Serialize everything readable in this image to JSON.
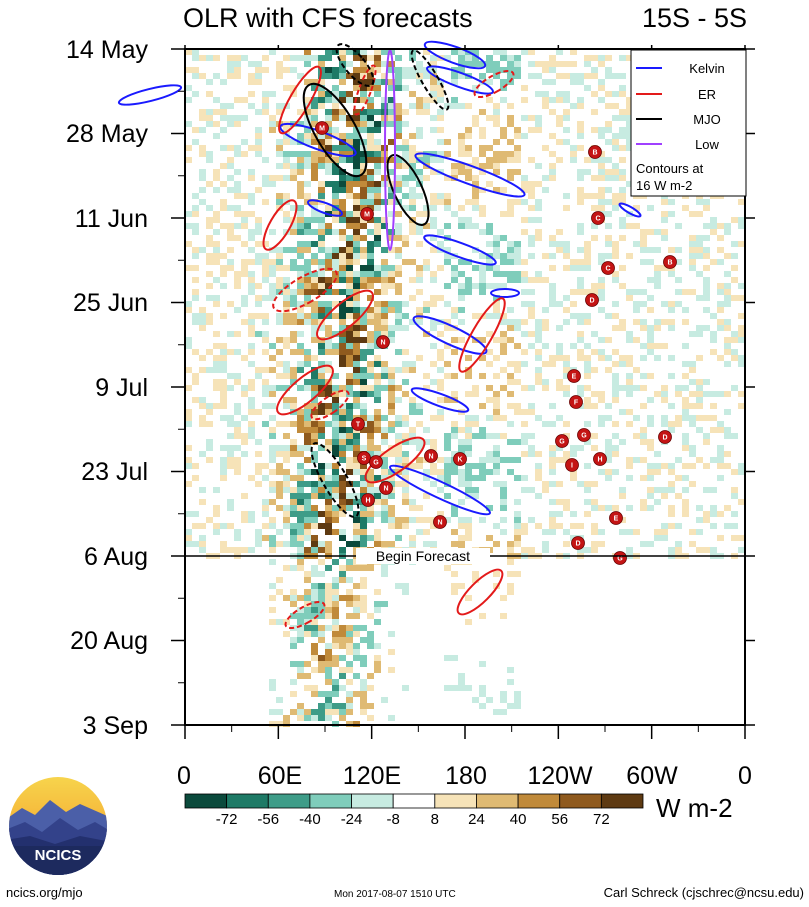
{
  "header": {
    "title": "OLR with CFS forecasts",
    "region": "15S - 5S"
  },
  "chart_data": {
    "type": "heatmap",
    "title": "OLR with CFS forecasts",
    "region": "15S - 5S",
    "y_axis": {
      "ticks": [
        "14 May",
        "28 May",
        "11 Jun",
        "25 Jun",
        "9 Jul",
        "23 Jul",
        "6 Aug",
        "20 Aug",
        "3 Sep"
      ],
      "range": [
        "14 May",
        "3 Sep"
      ]
    },
    "x_axis": {
      "ticks": [
        "0",
        "60E",
        "120E",
        "180",
        "120W",
        "60W",
        "0"
      ],
      "range": [
        0,
        360
      ]
    },
    "forecast_start": "6 Aug",
    "annotation": "Begin Forecast",
    "colorbar": {
      "levels": [
        "-72",
        "-56",
        "-40",
        "-24",
        "-8",
        "8",
        "24",
        "40",
        "56",
        "72"
      ],
      "colors": [
        "#0b4a3c",
        "#1e7a66",
        "#3e9c88",
        "#7fcdbb",
        "#c7ebe1",
        "#ffffff",
        "#f6e3b8",
        "#dfba73",
        "#c08a3a",
        "#8f5a1e",
        "#5e3a12"
      ],
      "unit": "W m-2"
    },
    "legend": {
      "placement": "top-right",
      "entries": [
        {
          "name": "Kelvin",
          "color": "#1a1aff"
        },
        {
          "name": "ER",
          "color": "#e31a1a"
        },
        {
          "name": "MJO",
          "color": "#000000"
        },
        {
          "name": "Low",
          "color": "#a040ff"
        }
      ],
      "note_line1": "Contours at",
      "note_line2": "16 W m-2"
    },
    "storms": [
      "M",
      "M",
      "B",
      "C",
      "C",
      "B",
      "D",
      "N",
      "E",
      "F",
      "T",
      "G",
      "G",
      "H",
      "I",
      "D",
      "S",
      "G",
      "K",
      "N",
      "N",
      "H",
      "N",
      "E",
      "D",
      "G"
    ]
  },
  "footer": {
    "logo_text": "NCICS",
    "site": "ncics.org/mjo",
    "timestamp": "Mon 2017-08-07 1510 UTC",
    "author": "Carl Schreck (cjschrec@ncsu.edu)"
  }
}
